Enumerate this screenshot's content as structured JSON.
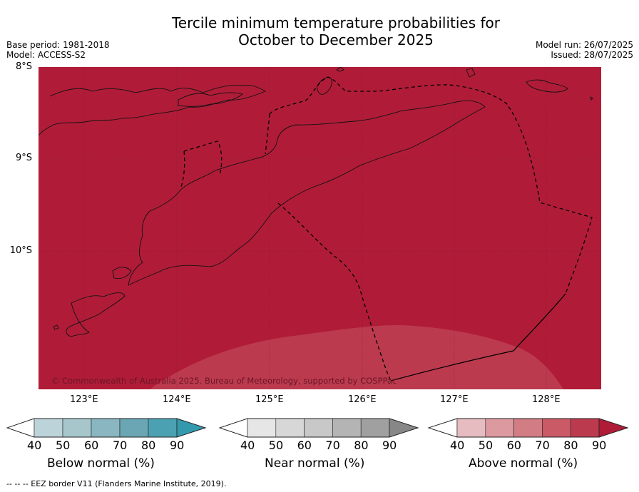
{
  "title_line1": "Tercile minimum temperature probabilities for",
  "title_line2": "October to December 2025",
  "base_period": "Base period: 1981-2018",
  "model": "Model: ACCESS-S2",
  "model_run": "Model run: 26/07/2025",
  "issued": "Issued: 28/07/2025",
  "lat_labels": [
    "8°S",
    "9°S",
    "10°S"
  ],
  "lon_labels": [
    "123°E",
    "124°E",
    "125°E",
    "126°E",
    "127°E",
    "128°E"
  ],
  "copyright": "© Commonwealth of Australia 2025. Bureau of Meteorology, supported by COSPPac",
  "colors": {
    "above_90": "#b01c38",
    "above_80": "#bc3a4e",
    "above_70": "#c95a66",
    "above_60": "#d27c84",
    "above_50": "#dc9aa0",
    "above_40": "#e6bcc0",
    "below": [
      "#bdd3da",
      "#a6c6cc",
      "#89b6c0",
      "#6aa6b4",
      "#4ba1b2",
      "#3399ad"
    ],
    "near": [
      "#e6e6e6",
      "#d7d7d7",
      "#c8c8c8",
      "#b4b4b4",
      "#a0a0a0",
      "#878787"
    ]
  },
  "colorbars": [
    {
      "label": "Below normal (%)",
      "ticks": [
        "40",
        "50",
        "60",
        "70",
        "80",
        "90"
      ]
    },
    {
      "label": "Near normal (%)",
      "ticks": [
        "40",
        "50",
        "60",
        "70",
        "80",
        "90"
      ]
    },
    {
      "label": "Above normal (%)",
      "ticks": [
        "40",
        "50",
        "60",
        "70",
        "80",
        "90"
      ]
    }
  ],
  "footer": "--  --  -- EEZ border V11 (Flanders Marine Institute, 2019)."
}
